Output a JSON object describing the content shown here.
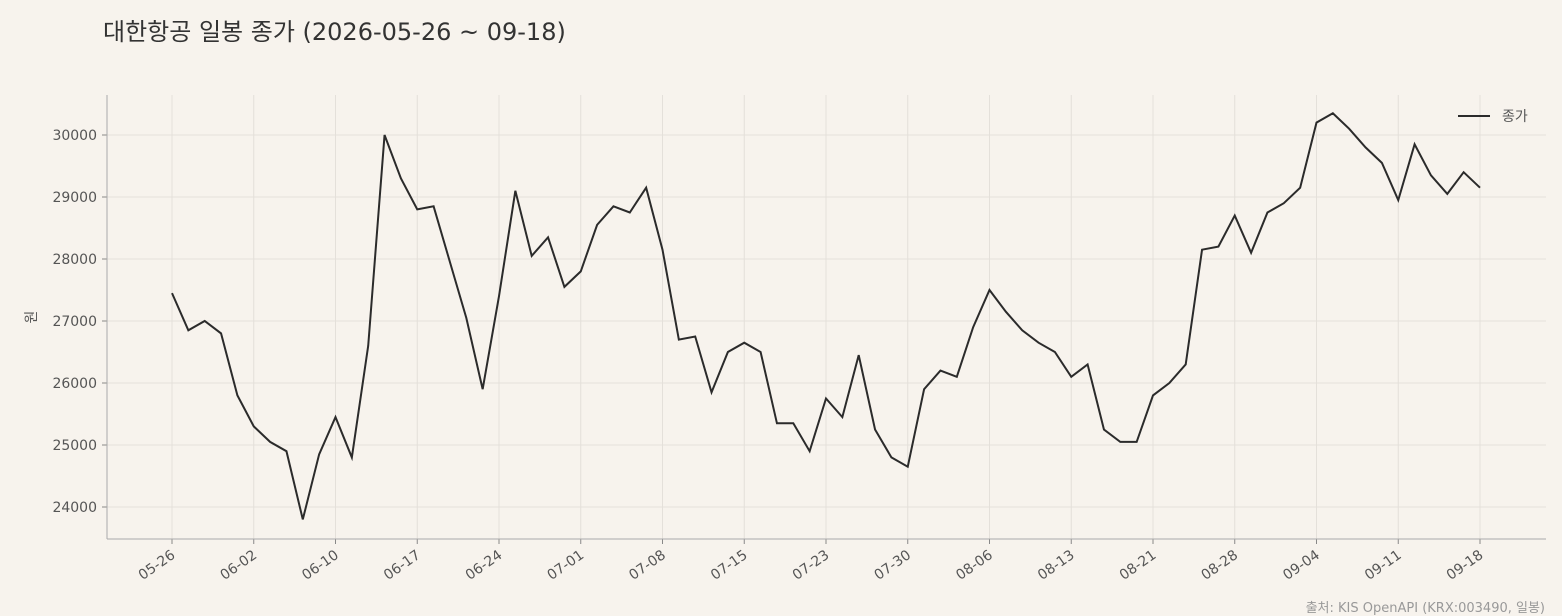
{
  "chart_data": {
    "type": "line",
    "title": "대한항공 일봉 종가 (2026-05-26 ~ 09-18)",
    "y_label": "원",
    "source": "출처: KIS OpenAPI (KRX:003490, 일봉)",
    "categories": [
      "05-26",
      null,
      null,
      null,
      null,
      "06-02",
      null,
      null,
      null,
      null,
      "06-10",
      null,
      null,
      null,
      null,
      "06-17",
      null,
      null,
      null,
      null,
      "06-24",
      null,
      null,
      null,
      null,
      "07-01",
      null,
      null,
      null,
      null,
      "07-08",
      null,
      null,
      null,
      null,
      "07-15",
      null,
      null,
      null,
      null,
      "07-23",
      null,
      null,
      null,
      null,
      "07-30",
      null,
      null,
      null,
      null,
      "08-06",
      null,
      null,
      null,
      null,
      "08-13",
      null,
      null,
      null,
      null,
      "08-21",
      null,
      null,
      null,
      null,
      "08-28",
      null,
      null,
      null,
      null,
      "09-04",
      null,
      null,
      null,
      null,
      "09-11",
      null,
      null,
      null,
      null,
      "09-18"
    ],
    "series": [
      {
        "name": "종가",
        "color": "#2b2b2b",
        "values": [
          27450,
          26850,
          27000,
          26800,
          25800,
          25300,
          25050,
          24900,
          23800,
          24850,
          25450,
          24800,
          26600,
          30000,
          29300,
          28800,
          28850,
          27950,
          27050,
          25900,
          27400,
          29100,
          28050,
          28350,
          27550,
          27800,
          28550,
          28850,
          28750,
          29150,
          28150,
          26700,
          26750,
          25850,
          26500,
          26650,
          26500,
          25350,
          25350,
          24900,
          25750,
          25450,
          26450,
          25250,
          24800,
          24650,
          25900,
          26200,
          26100,
          26900,
          27500,
          27150,
          26850,
          26650,
          26500,
          26100,
          26300,
          25250,
          25050,
          25050,
          25800,
          26000,
          26300,
          28150,
          28200,
          28700,
          28100,
          28750,
          28900,
          29150,
          30200,
          30350,
          30100,
          29800,
          29550,
          28950,
          29850,
          29350,
          29050,
          29400,
          29150
        ]
      }
    ],
    "ylim": [
      23484,
      30645
    ],
    "yticks": [
      24000,
      25000,
      26000,
      27000,
      28000,
      29000,
      30000
    ],
    "grid": true,
    "legend": "upper right"
  }
}
